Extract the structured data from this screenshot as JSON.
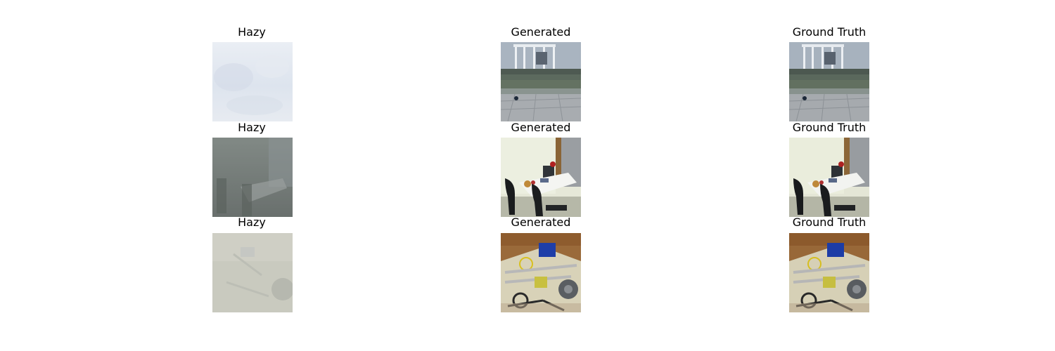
{
  "figure": {
    "rows": [
      {
        "hazy_title": "Hazy",
        "generated_title": "Generated",
        "ground_truth_title": "Ground Truth"
      },
      {
        "hazy_title": "Hazy",
        "generated_title": "Generated",
        "ground_truth_title": "Ground Truth"
      },
      {
        "hazy_title": "Hazy",
        "generated_title": "Generated",
        "ground_truth_title": "Ground Truth"
      }
    ]
  }
}
